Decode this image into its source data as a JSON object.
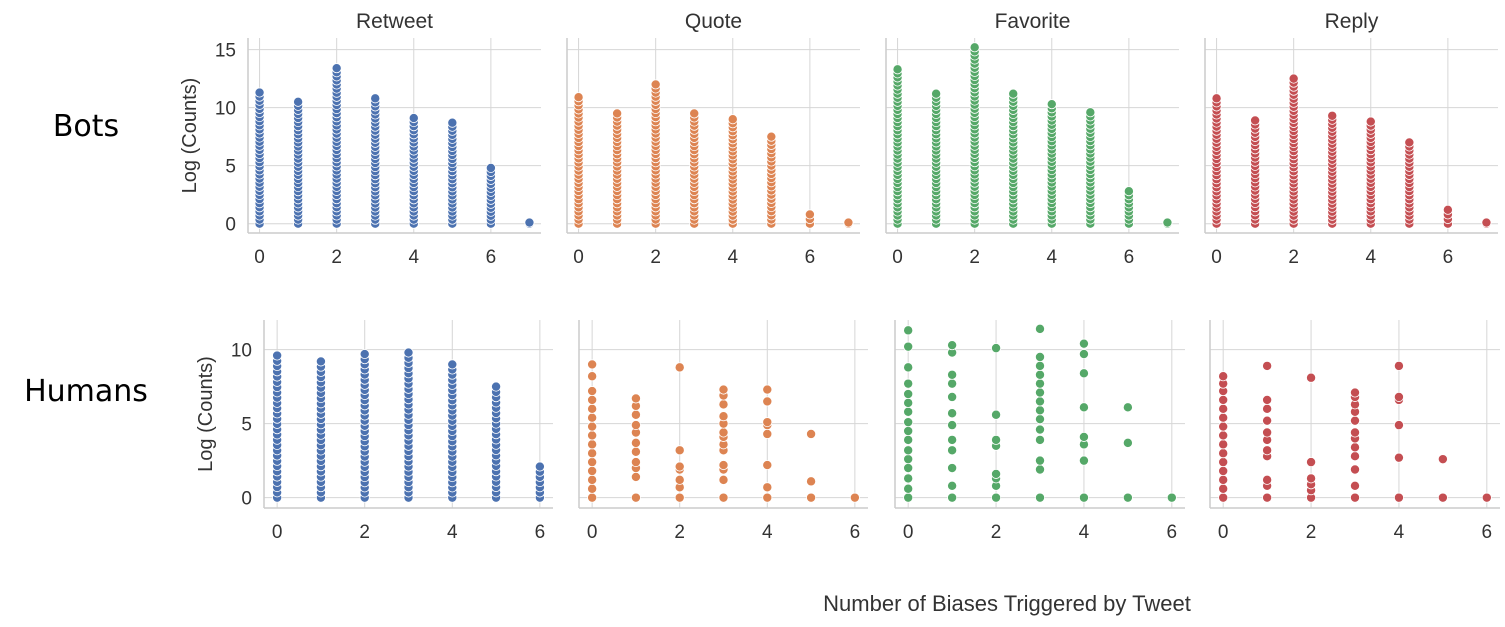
{
  "figure": {
    "xlabel": "Number of Biases Triggered by Tweet",
    "ylabel": "Log (Counts)",
    "columns": [
      "Retweet",
      "Quote",
      "Favorite",
      "Reply"
    ],
    "rows": [
      "Bots",
      "Humans"
    ],
    "colors": {
      "Retweet": "#4c72b0",
      "Quote": "#dd8452",
      "Favorite": "#55a868",
      "Reply": "#c44e52"
    },
    "grid_color": "#d6d6d6",
    "axis_color": "#cccccc"
  },
  "chart_data": [
    {
      "type": "scatter",
      "row": "Bots",
      "title": "Retweet",
      "xlabel": "",
      "ylabel": "Log (Counts)",
      "xlim": [
        -0.3,
        7.3
      ],
      "ylim": [
        -0.8,
        16
      ],
      "xticks": [
        0,
        2,
        4,
        6
      ],
      "yticks": [
        0,
        5,
        10,
        15
      ],
      "grid": true,
      "x": [
        0,
        1,
        2,
        3,
        4,
        5,
        6,
        7
      ],
      "y_min": [
        0,
        0,
        0,
        0,
        0,
        0,
        0,
        0
      ],
      "y_max": [
        11.3,
        10.5,
        13.4,
        10.8,
        9.1,
        8.7,
        4.8,
        0.1
      ]
    },
    {
      "type": "scatter",
      "row": "Bots",
      "title": "Quote",
      "xlabel": "",
      "ylabel": "",
      "xlim": [
        -0.3,
        7.3
      ],
      "ylim": [
        -0.8,
        16
      ],
      "xticks": [
        0,
        2,
        4,
        6
      ],
      "yticks": [
        0,
        5,
        10,
        15
      ],
      "grid": true,
      "x": [
        0,
        1,
        2,
        3,
        4,
        5,
        6,
        7
      ],
      "y_min": [
        0,
        0,
        0,
        0,
        0,
        0,
        0,
        0
      ],
      "y_max": [
        10.9,
        9.5,
        12,
        9.5,
        9,
        7.5,
        0.8,
        0.1
      ]
    },
    {
      "type": "scatter",
      "row": "Bots",
      "title": "Favorite",
      "xlabel": "",
      "ylabel": "",
      "xlim": [
        -0.3,
        7.3
      ],
      "ylim": [
        -0.8,
        16
      ],
      "xticks": [
        0,
        2,
        4,
        6
      ],
      "yticks": [
        0,
        5,
        10,
        15
      ],
      "grid": true,
      "x": [
        0,
        1,
        2,
        3,
        4,
        5,
        6,
        7
      ],
      "y_min": [
        0,
        0,
        0,
        0,
        0,
        0,
        0,
        0
      ],
      "y_max": [
        13.3,
        11.2,
        15.2,
        11.2,
        10.3,
        9.6,
        2.8,
        0.1
      ]
    },
    {
      "type": "scatter",
      "row": "Bots",
      "title": "Reply",
      "xlabel": "",
      "ylabel": "",
      "xlim": [
        -0.3,
        7.3
      ],
      "ylim": [
        -0.8,
        16
      ],
      "xticks": [
        0,
        2,
        4,
        6
      ],
      "yticks": [
        0,
        5,
        10,
        15
      ],
      "grid": true,
      "x": [
        0,
        1,
        2,
        3,
        4,
        5,
        6,
        7
      ],
      "y_min": [
        0,
        0,
        0,
        0,
        0,
        0,
        0,
        0
      ],
      "y_max": [
        10.8,
        8.9,
        12.5,
        9.3,
        8.8,
        7,
        1.2,
        0.1
      ]
    },
    {
      "type": "scatter",
      "row": "Humans",
      "title": "",
      "xlabel": "",
      "ylabel": "Log (Counts)",
      "xlim": [
        -0.3,
        6.3
      ],
      "ylim": [
        -0.7,
        12
      ],
      "xticks": [
        0,
        2,
        4,
        6
      ],
      "yticks": [
        0,
        5,
        10
      ],
      "grid": true,
      "x": [
        0,
        1,
        2,
        3,
        4,
        5,
        6
      ],
      "y_min": [
        0,
        0,
        0,
        0,
        0,
        0,
        0
      ],
      "y_max": [
        9.6,
        9.2,
        9.7,
        9.8,
        9,
        7.5,
        2.1
      ]
    },
    {
      "type": "scatter",
      "row": "Humans",
      "title": "",
      "xlabel": "",
      "ylabel": "",
      "xlim": [
        -0.3,
        6.3
      ],
      "ylim": [
        -0.7,
        12
      ],
      "xticks": [
        0,
        2,
        4,
        6
      ],
      "yticks": [
        0,
        5,
        10
      ],
      "grid": true,
      "x": [
        0,
        1,
        2,
        3,
        4,
        5,
        6
      ],
      "points": [
        [
          0,
          0
        ],
        [
          0,
          0.6
        ],
        [
          0,
          1.2
        ],
        [
          0,
          1.8
        ],
        [
          0,
          2.4
        ],
        [
          0,
          3
        ],
        [
          0,
          3.6
        ],
        [
          0,
          4.2
        ],
        [
          0,
          4.8
        ],
        [
          0,
          5.4
        ],
        [
          0,
          6
        ],
        [
          0,
          6.6
        ],
        [
          0,
          7.2
        ],
        [
          0,
          8.2
        ],
        [
          0,
          9
        ],
        [
          1,
          0
        ],
        [
          1,
          1.4
        ],
        [
          1,
          2
        ],
        [
          1,
          2.4
        ],
        [
          1,
          3.1
        ],
        [
          1,
          3.7
        ],
        [
          1,
          4.4
        ],
        [
          1,
          4.9
        ],
        [
          1,
          5.6
        ],
        [
          1,
          6.2
        ],
        [
          1,
          6.7
        ],
        [
          2,
          0
        ],
        [
          2,
          0.7
        ],
        [
          2,
          1.2
        ],
        [
          2,
          1.9
        ],
        [
          2,
          2.1
        ],
        [
          2,
          3.2
        ],
        [
          2,
          8.8
        ],
        [
          3,
          0
        ],
        [
          3,
          1.2
        ],
        [
          3,
          1.9
        ],
        [
          3,
          2.2
        ],
        [
          3,
          3.2
        ],
        [
          3,
          3.6
        ],
        [
          3,
          4.1
        ],
        [
          3,
          4.4
        ],
        [
          3,
          5
        ],
        [
          3,
          5.5
        ],
        [
          3,
          6.3
        ],
        [
          3,
          6.9
        ],
        [
          3,
          7.3
        ],
        [
          4,
          0
        ],
        [
          4,
          0.7
        ],
        [
          4,
          2.2
        ],
        [
          4,
          4.3
        ],
        [
          4,
          4.9
        ],
        [
          4,
          5.1
        ],
        [
          4,
          6.5
        ],
        [
          4,
          7.3
        ],
        [
          5,
          0
        ],
        [
          5,
          1.1
        ],
        [
          5,
          4.3
        ],
        [
          6,
          0
        ]
      ]
    },
    {
      "type": "scatter",
      "row": "Humans",
      "title": "",
      "xlabel": "",
      "ylabel": "",
      "xlim": [
        -0.3,
        6.3
      ],
      "ylim": [
        -0.7,
        12
      ],
      "xticks": [
        0,
        2,
        4,
        6
      ],
      "yticks": [
        0,
        5,
        10
      ],
      "grid": true,
      "x": [
        0,
        1,
        2,
        3,
        4,
        5,
        6
      ],
      "points": [
        [
          0,
          0
        ],
        [
          0,
          0.6
        ],
        [
          0,
          1.3
        ],
        [
          0,
          2
        ],
        [
          0,
          2.6
        ],
        [
          0,
          3.2
        ],
        [
          0,
          3.9
        ],
        [
          0,
          4.5
        ],
        [
          0,
          5.1
        ],
        [
          0,
          5.8
        ],
        [
          0,
          6.4
        ],
        [
          0,
          7
        ],
        [
          0,
          7.7
        ],
        [
          0,
          8.8
        ],
        [
          0,
          10.2
        ],
        [
          0,
          11.3
        ],
        [
          1,
          0
        ],
        [
          1,
          0.8
        ],
        [
          1,
          2
        ],
        [
          1,
          3.2
        ],
        [
          1,
          3.9
        ],
        [
          1,
          4.9
        ],
        [
          1,
          5.7
        ],
        [
          1,
          6.8
        ],
        [
          1,
          7.7
        ],
        [
          1,
          8.3
        ],
        [
          1,
          9.8
        ],
        [
          1,
          10.3
        ],
        [
          2,
          0
        ],
        [
          2,
          0.8
        ],
        [
          2,
          1.3
        ],
        [
          2,
          1.6
        ],
        [
          2,
          3.5
        ],
        [
          2,
          3.9
        ],
        [
          2,
          5.6
        ],
        [
          2,
          10.1
        ],
        [
          3,
          0
        ],
        [
          3,
          1.9
        ],
        [
          3,
          2.5
        ],
        [
          3,
          3.9
        ],
        [
          3,
          4.6
        ],
        [
          3,
          5.3
        ],
        [
          3,
          5.9
        ],
        [
          3,
          6.5
        ],
        [
          3,
          7.1
        ],
        [
          3,
          7.7
        ],
        [
          3,
          8.3
        ],
        [
          3,
          8.9
        ],
        [
          3,
          9.5
        ],
        [
          3,
          11.4
        ],
        [
          4,
          0
        ],
        [
          4,
          2.5
        ],
        [
          4,
          3.6
        ],
        [
          4,
          4.1
        ],
        [
          4,
          6.1
        ],
        [
          4,
          8.4
        ],
        [
          4,
          9.7
        ],
        [
          4,
          10.4
        ],
        [
          5,
          0
        ],
        [
          5,
          3.7
        ],
        [
          5,
          6.1
        ],
        [
          6,
          0
        ]
      ]
    },
    {
      "type": "scatter",
      "row": "Humans",
      "title": "",
      "xlabel": "",
      "ylabel": "",
      "xlim": [
        -0.3,
        6.3
      ],
      "ylim": [
        -0.7,
        12
      ],
      "xticks": [
        0,
        2,
        4,
        6
      ],
      "yticks": [
        0,
        5,
        10
      ],
      "grid": true,
      "x": [
        0,
        1,
        2,
        3,
        4,
        5,
        6
      ],
      "points": [
        [
          0,
          0
        ],
        [
          0,
          0.6
        ],
        [
          0,
          1.2
        ],
        [
          0,
          1.8
        ],
        [
          0,
          2.4
        ],
        [
          0,
          3
        ],
        [
          0,
          3.6
        ],
        [
          0,
          4.2
        ],
        [
          0,
          4.8
        ],
        [
          0,
          5.4
        ],
        [
          0,
          6
        ],
        [
          0,
          6.6
        ],
        [
          0,
          7.2
        ],
        [
          0,
          7.7
        ],
        [
          0,
          8.2
        ],
        [
          1,
          0
        ],
        [
          1,
          0.8
        ],
        [
          1,
          1.2
        ],
        [
          1,
          2.8
        ],
        [
          1,
          3.2
        ],
        [
          1,
          3.9
        ],
        [
          1,
          4.4
        ],
        [
          1,
          5.2
        ],
        [
          1,
          6
        ],
        [
          1,
          6.6
        ],
        [
          1,
          8.9
        ],
        [
          2,
          0
        ],
        [
          2,
          0.5
        ],
        [
          2,
          0.9
        ],
        [
          2,
          1.3
        ],
        [
          2,
          2.4
        ],
        [
          2,
          8.1
        ],
        [
          3,
          0
        ],
        [
          3,
          0.8
        ],
        [
          3,
          1.9
        ],
        [
          3,
          2.8
        ],
        [
          3,
          3.4
        ],
        [
          3,
          4
        ],
        [
          3,
          4.4
        ],
        [
          3,
          5.2
        ],
        [
          3,
          5.8
        ],
        [
          3,
          6.3
        ],
        [
          3,
          6.8
        ],
        [
          3,
          7.1
        ],
        [
          4,
          0
        ],
        [
          4,
          2.7
        ],
        [
          4,
          4.9
        ],
        [
          4,
          6.6
        ],
        [
          4,
          6.8
        ],
        [
          4,
          8.9
        ],
        [
          5,
          0
        ],
        [
          5,
          2.6
        ],
        [
          6,
          0
        ]
      ]
    }
  ]
}
